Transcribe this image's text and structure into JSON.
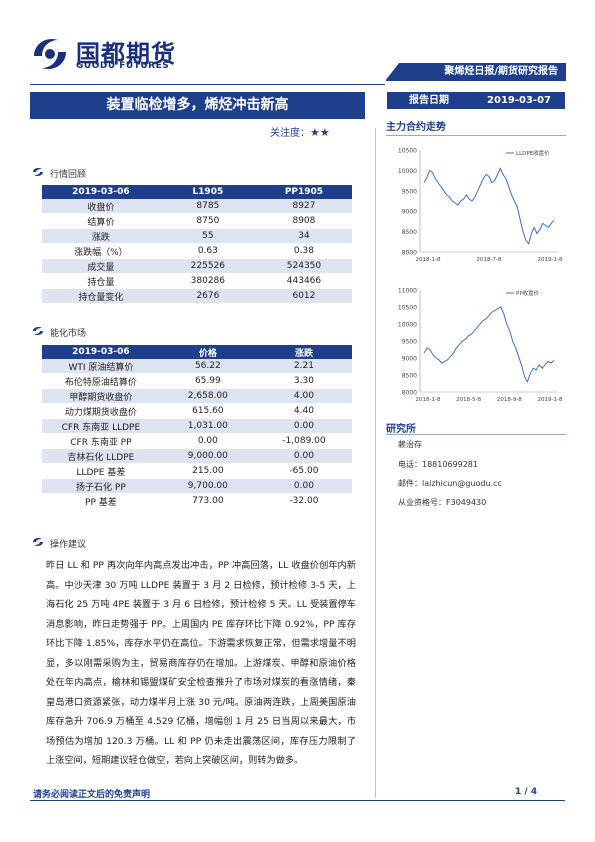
{
  "header": {
    "logo_cn": "国都期货",
    "logo_en": "GUODU FUTURES",
    "report_type": "聚烯烃日报/期货研究报告",
    "date_label": "报告日期",
    "date_value": "2019-03-07"
  },
  "title": "装置临检增多，烯烃冲击新高",
  "attention": {
    "label": "关注度：",
    "stars": "★★"
  },
  "market_review": {
    "section_label": "行情回顾",
    "headers": [
      "2019-03-06",
      "L1905",
      "PP1905"
    ],
    "rows": [
      [
        "收盘价",
        "8785",
        "8927"
      ],
      [
        "结算价",
        "8750",
        "8908"
      ],
      [
        "涨跌",
        "55",
        "34"
      ],
      [
        "涨跌幅（%）",
        "0.63",
        "0.38"
      ],
      [
        "成交量",
        "225526",
        "524350"
      ],
      [
        "持仓量",
        "380286",
        "443466"
      ],
      [
        "持仓量变化",
        "2676",
        "6012"
      ]
    ]
  },
  "energy_market": {
    "section_label": "能化市场",
    "headers": [
      "2019-03-06",
      "价格",
      "涨跌"
    ],
    "rows": [
      [
        "WTI 原油结算价",
        "56.22",
        "2.21"
      ],
      [
        "布伦特原油结算价",
        "65.99",
        "3.30"
      ],
      [
        "甲醇期货收盘价",
        "2,658.00",
        "4.00"
      ],
      [
        "动力煤期货收盘价",
        "615.60",
        "4.40"
      ],
      [
        "CFR 东南亚 LLDPE",
        "1,031.00",
        "0.00"
      ],
      [
        "CFR 东南亚 PP",
        "0.00",
        "-1,089.00"
      ],
      [
        "吉林石化 LLDPE",
        "9,000.00",
        "0.00"
      ],
      [
        "LLDPE 基差",
        "215.00",
        "-65.00"
      ],
      [
        "扬子石化 PP",
        "9,700.00",
        "0.00"
      ],
      [
        "PP 基差",
        "773.00",
        "-32.00"
      ]
    ]
  },
  "operation": {
    "section_label": "操作建议",
    "text": "昨日 LL 和 PP 再次向年内高点发出冲击，PP 冲高回落，LL 收盘价创年内新高。中沙天津 30 万吨 LLDPE 装置于 3 月 2 日检修，预计检修 3-5 天，上海石化 25 万吨 4PE 装置于 3 月 6 日检修，预计检修 5 天。LL 受装置停车消息影响，昨日走势强于 PP。上周国内 PE 库存环比下降 0.92%，PP 库存环比下降 1.85%，库存水平仍在高位。下游需求恢复正常，但需求增量不明显，多以刚需采购为主，贸易商库存仍在增加。上游煤炭、甲醇和原油价格处在年内高点，榆林和锡盟煤矿安全检查推升了市场对煤炭的看涨情绪，秦皇岛港口资源紧张，动力煤半月上涨 30 元/吨。原油两连跌，上周美国原油库存急升 706.9 万桶至 4.529 亿桶，增幅创 1 月 25 日当周以来最大，市场预估为增加 120.3 万桶。LL 和 PP 仍未走出震荡区间，库存压力限制了上涨空间，短期建议轻仓做空，若向上突破区间，则转为做多。"
  },
  "main_contract": {
    "section_label": "主力合约走势",
    "charts": [
      {
        "legend": "LLDPE收盘价",
        "y_ticks": [
          "10500",
          "10000",
          "9500",
          "9000",
          "8500",
          "8000"
        ],
        "x_ticks": [
          "2018-1-8",
          "2018-7-8",
          "2019-1-8"
        ]
      },
      {
        "legend": "PP收盘价",
        "y_ticks": [
          "11000",
          "10500",
          "10000",
          "9500",
          "9000",
          "8500",
          "8000"
        ],
        "x_ticks": [
          "2018-1-8",
          "2018-5-8",
          "2018-9-8",
          "2019-1-8"
        ]
      }
    ]
  },
  "chart_data": [
    {
      "type": "line",
      "title": "",
      "series": [
        {
          "name": "LLDPE收盘价",
          "values": [
            9700,
            9820,
            10000,
            9950,
            9800,
            9700,
            9600,
            9500,
            9400,
            9350,
            9250,
            9200,
            9150,
            9250,
            9300,
            9400,
            9300,
            9250,
            9350,
            9500,
            9650,
            9800,
            9900,
            9850,
            9700,
            9750,
            9900,
            10050,
            9900,
            9800,
            9600,
            9400,
            9250,
            9100,
            8800,
            8500,
            8300,
            8200,
            8450,
            8600,
            8450,
            8550,
            8700,
            8650,
            8600,
            8700,
            8780
          ]
        }
      ],
      "ylim": [
        8000,
        10500
      ]
    },
    {
      "type": "line",
      "title": "",
      "series": [
        {
          "name": "PP收盘价",
          "values": [
            9150,
            9300,
            9250,
            9100,
            9000,
            8950,
            8850,
            8900,
            8950,
            9050,
            9150,
            9300,
            9400,
            9500,
            9550,
            9650,
            9700,
            9800,
            9900,
            10000,
            10100,
            10150,
            10250,
            10350,
            10400,
            10450,
            10500,
            10300,
            10000,
            9800,
            9500,
            9300,
            9050,
            8800,
            8450,
            8300,
            8550,
            8700,
            8650,
            8800,
            8700,
            8800,
            8900,
            8850,
            8930
          ]
        }
      ],
      "ylim": [
        8000,
        11000
      ]
    }
  ],
  "researcher": {
    "section_label": "研究所",
    "name": "赖治存",
    "phone_label": "电话：",
    "phone": "18810699281",
    "email_label": "邮件：",
    "email": "laizhicun@guodu.cc",
    "license_label": "从业资格号：",
    "license": "F3049430"
  },
  "footer": {
    "disclaimer": "请务必阅读正文后的免责声明",
    "page": "1 / 4"
  }
}
